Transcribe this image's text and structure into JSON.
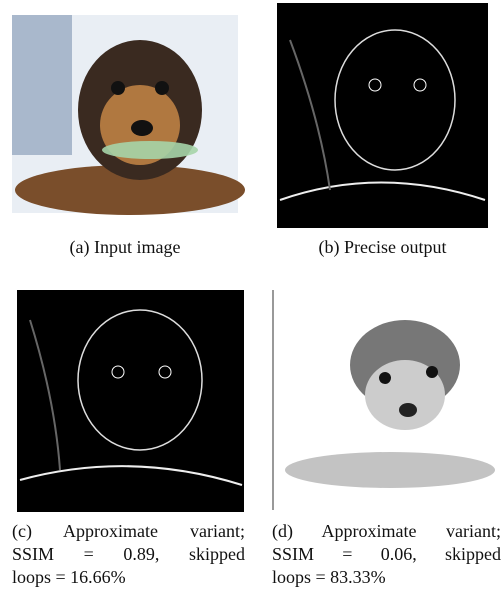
{
  "figure": {
    "panels": [
      {
        "caption_lines": [
          "(a) Input image"
        ]
      },
      {
        "caption_lines": [
          "(b) Precise output"
        ]
      },
      {
        "caption_lines": [
          "(c) Approximate variant;",
          "SSIM = 0.89, skipped",
          "loops = 16.66%"
        ]
      },
      {
        "caption_lines": [
          "(d) Approximate variant;",
          "SSIM = 0.06, skipped",
          "loops = 83.33%"
        ]
      }
    ]
  }
}
